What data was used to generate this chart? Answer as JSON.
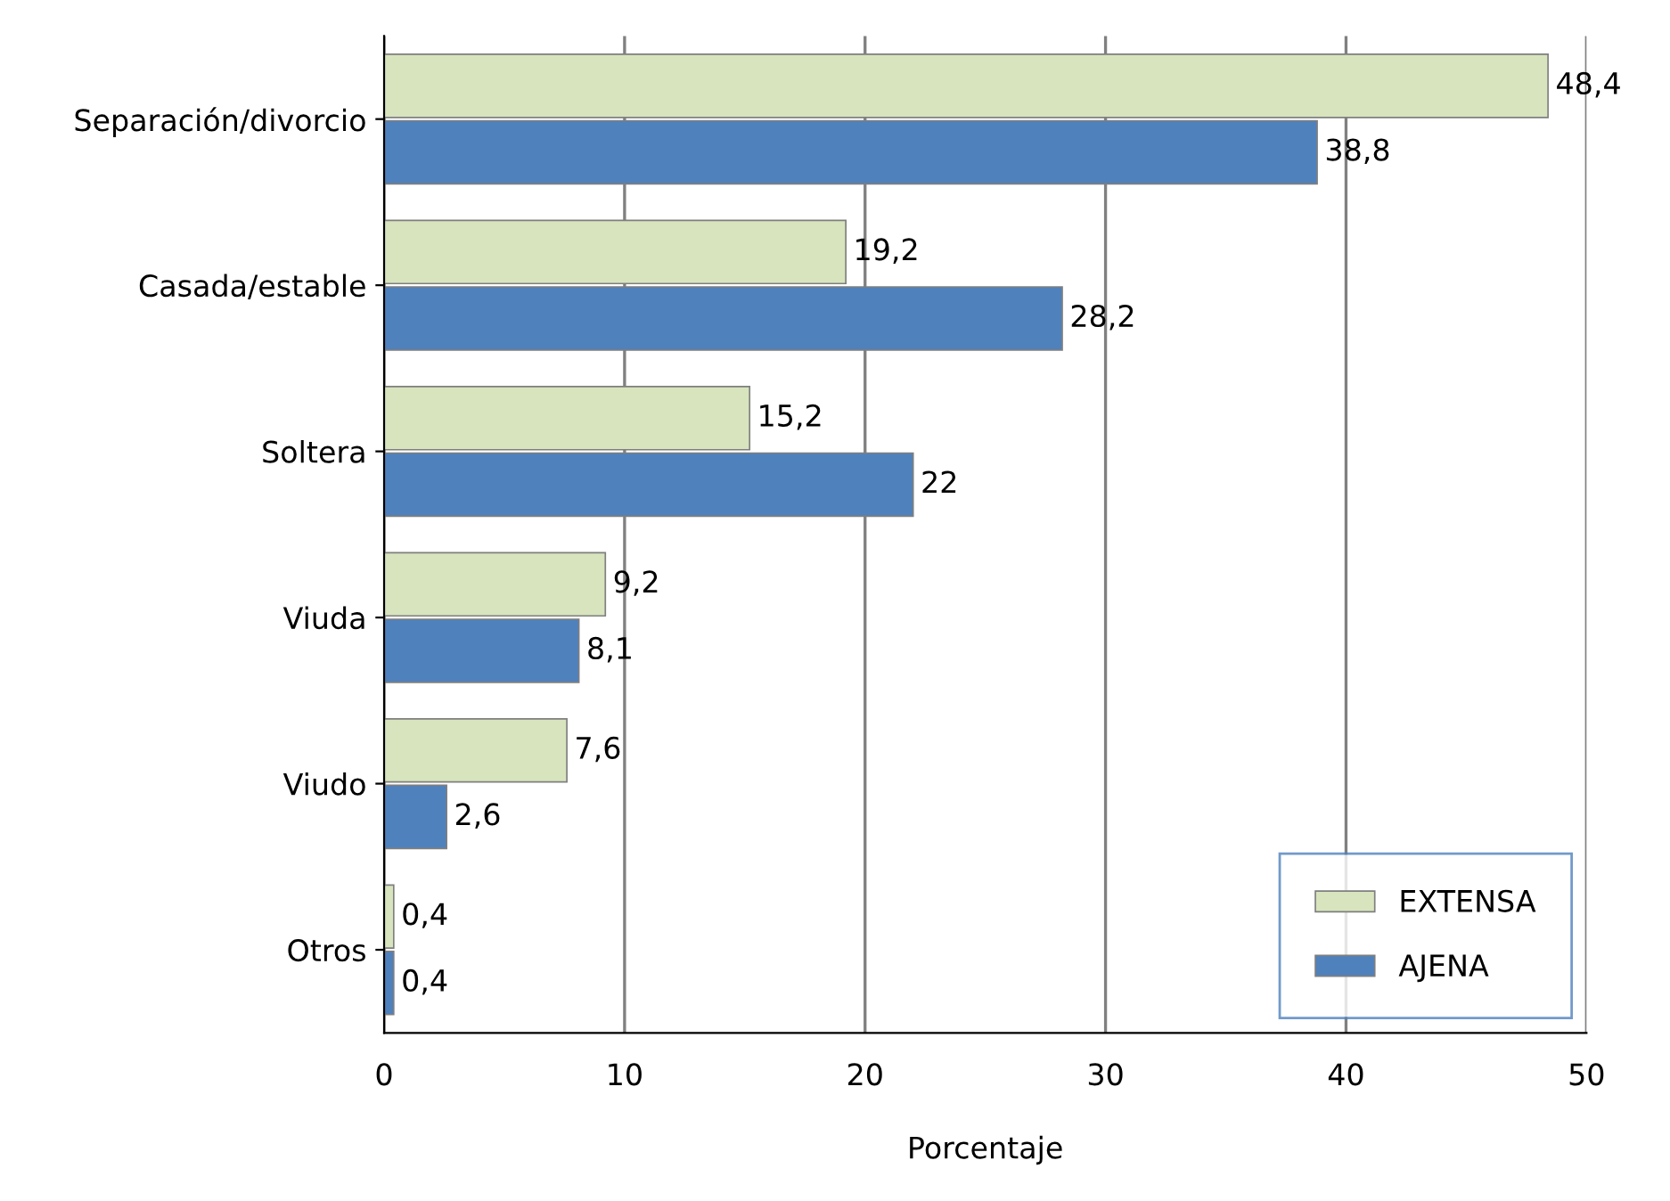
{
  "chart_data": {
    "type": "bar",
    "orientation": "horizontal",
    "xlabel": "Porcentaje",
    "categories": [
      "Separación/divorcio",
      "Casada/estable",
      "Soltera",
      "Viuda",
      "Viudo",
      "Otros"
    ],
    "series": [
      {
        "name": "EXTENSA",
        "color": "#d7e4bd",
        "values": [
          48.4,
          19.2,
          15.2,
          9.2,
          7.6,
          0.4
        ],
        "value_labels": [
          "48,4",
          "19,2",
          "15,2",
          "9,2",
          "7,6",
          "0,4"
        ]
      },
      {
        "name": "AJENA",
        "color": "#4f81bd",
        "values": [
          38.8,
          28.2,
          22,
          8.1,
          2.6,
          0.4
        ],
        "value_labels": [
          "38,8",
          "28,2",
          "22",
          "8,1",
          "2,6",
          "0,4"
        ]
      }
    ],
    "xlim": [
      0,
      50
    ],
    "xticks": [
      0,
      10,
      20,
      30,
      40,
      50
    ],
    "grid": "x",
    "legend": "bottom right"
  }
}
